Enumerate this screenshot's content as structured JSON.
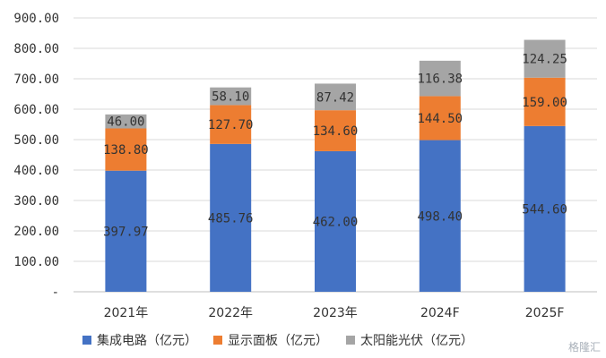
{
  "chart_data": {
    "type": "bar",
    "stacked": true,
    "categories": [
      "2021年",
      "2022年",
      "2023年",
      "2024F",
      "2025F"
    ],
    "series": [
      {
        "name": "集成电路（亿元）",
        "color": "#4472C4",
        "values": [
          397.97,
          485.76,
          462.0,
          498.4,
          544.6
        ],
        "labels": [
          "397.97",
          "485.76",
          "462.00",
          "498.40",
          "544.60"
        ]
      },
      {
        "name": "显示面板（亿元）",
        "color": "#ED7D31",
        "values": [
          138.8,
          127.7,
          134.6,
          144.5,
          159.0
        ],
        "labels": [
          "138.80",
          "127.70",
          "134.60",
          "144.50",
          "159.00"
        ]
      },
      {
        "name": "太阳能光伏（亿元）",
        "color": "#A5A5A5",
        "values": [
          46.0,
          58.1,
          87.42,
          116.38,
          124.25
        ],
        "labels": [
          "46.00",
          "58.10",
          "87.42",
          "116.38",
          "124.25"
        ]
      }
    ],
    "ylim": [
      0,
      900
    ],
    "yticks": [
      "-",
      "100.00",
      "200.00",
      "300.00",
      "400.00",
      "500.00",
      "600.00",
      "700.00",
      "800.00",
      "900.00"
    ],
    "grid": true,
    "legend": "bottom"
  },
  "watermark": "格隆汇"
}
